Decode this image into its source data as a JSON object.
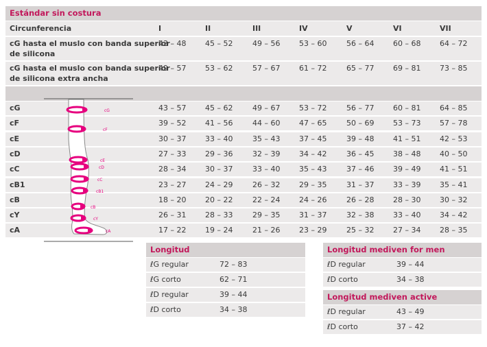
{
  "title": "Estándar sin costura",
  "header": {
    "label": "Circunferencia",
    "sizes": [
      "I",
      "II",
      "III",
      "IV",
      "V",
      "VI",
      "VII"
    ]
  },
  "top_rows": [
    {
      "label_line1": "cG hasta el muslo con banda superior",
      "label_line2": "de silicona",
      "values": [
        "43 – 48",
        "45 – 52",
        "49 – 56",
        "53 – 60",
        "56 – 64",
        "60 – 68",
        "64 – 72"
      ]
    },
    {
      "label_line1": "cG hasta el muslo con banda superior",
      "label_line2": "de silicona extra ancha",
      "values": [
        "49 – 57",
        "53 – 62",
        "57 – 67",
        "61 – 72",
        "65 – 77",
        "69 – 81",
        "73 – 85"
      ]
    }
  ],
  "rows": [
    {
      "label": "cG",
      "values": [
        "43 – 57",
        "45 – 62",
        "49 – 67",
        "53 – 72",
        "56 – 77",
        "60 – 81",
        "64 – 85"
      ]
    },
    {
      "label": "cF",
      "values": [
        "39 – 52",
        "41 – 56",
        "44 – 60",
        "47 – 65",
        "50 – 69",
        "53 – 73",
        "57 – 78"
      ]
    },
    {
      "label": "cE",
      "values": [
        "30 – 37",
        "33 – 40",
        "35 – 43",
        "37 – 45",
        "39 – 48",
        "41 – 51",
        "42 – 53"
      ]
    },
    {
      "label": "cD",
      "values": [
        "27 – 33",
        "29 – 36",
        "32 – 39",
        "34 – 42",
        "36 – 45",
        "38 – 48",
        "40 – 50"
      ]
    },
    {
      "label": "cC",
      "values": [
        "28 – 34",
        "30 – 37",
        "33 – 40",
        "35 – 43",
        "37 – 46",
        "39 – 49",
        "41 – 51"
      ]
    },
    {
      "label": "cB1",
      "values": [
        "23 – 27",
        "24 – 29",
        "26 – 32",
        "29 – 35",
        "31 – 37",
        "33 – 39",
        "35 – 41"
      ]
    },
    {
      "label": "cB",
      "values": [
        "18 – 20",
        "20 – 22",
        "22 – 24",
        "24 – 26",
        "26 – 28",
        "28 – 30",
        "30 – 32"
      ]
    },
    {
      "label": "cY",
      "values": [
        "26 – 31",
        "28 – 33",
        "29 – 35",
        "31 – 37",
        "32 – 38",
        "33 – 40",
        "34 – 42"
      ]
    },
    {
      "label": "cA",
      "values": [
        "17 – 22",
        "19 – 24",
        "21 – 26",
        "23 – 29",
        "25 – 32",
        "27 – 34",
        "28 – 35"
      ]
    }
  ],
  "leg_labels": [
    "cG",
    "cF",
    "cE",
    "cD",
    "cC",
    "cB1",
    "cB",
    "cY",
    "cA"
  ],
  "longitud": {
    "title": "Longitud",
    "rows": [
      {
        "label": "ℓG regular",
        "value": "72 – 83"
      },
      {
        "label": "ℓG corto",
        "value": "62 – 71"
      },
      {
        "label": "ℓD regular",
        "value": "39 – 44"
      },
      {
        "label": "ℓD corto",
        "value": "34 – 38"
      }
    ]
  },
  "mediven_men": {
    "title": "Longitud mediven for men",
    "rows": [
      {
        "label": "ℓD regular",
        "value": "39 – 44"
      },
      {
        "label": "ℓD corto",
        "value": "34 – 38"
      }
    ]
  },
  "mediven_active": {
    "title": "Longitud mediven active",
    "rows": [
      {
        "label": "ℓD regular",
        "value": "43 – 49"
      },
      {
        "label": "ℓD corto",
        "value": "37 – 42"
      }
    ]
  },
  "colors": {
    "accent": "#e6007e",
    "title_text": "#c2185b",
    "band": "#d6d2d2",
    "row": "#eceaea"
  }
}
